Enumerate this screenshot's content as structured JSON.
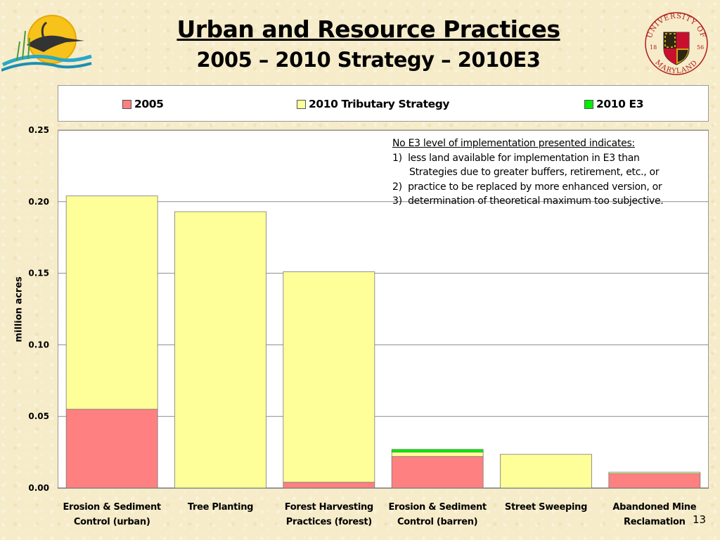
{
  "slide": {
    "title": "Urban and Resource Practices",
    "subtitle": "2005 – 2010 Strategy – 2010E3",
    "page_number": "13",
    "logos": [
      {
        "icon": "sun-heron-logo"
      },
      {
        "icon": "university-seal-logo",
        "text_top": "UNIVERSITY OF",
        "text_bottom": "MARYLAND",
        "year_left": "18",
        "year_right": "56"
      }
    ]
  },
  "annotation": {
    "heading": "No E3 level of implementation presented indicates:",
    "items": [
      {
        "number": "1)",
        "text": "less land available for implementation in E3 than"
      },
      {
        "number": "",
        "text": "Strategies due to greater buffers, retirement, etc., or"
      },
      {
        "number": "2)",
        "text": "practice to be replaced by more enhanced version, or"
      },
      {
        "number": "3)",
        "text": "determination of theoretical maximum too subjective."
      }
    ]
  },
  "chart_data": {
    "type": "bar",
    "stacked": true,
    "categories": [
      [
        "Erosion & Sediment",
        "Control (urban)"
      ],
      [
        "Tree Planting"
      ],
      [
        "Forest Harvesting",
        "Practices (forest)"
      ],
      [
        "Erosion & Sediment",
        "Control (barren)"
      ],
      [
        "Street Sweeping"
      ],
      [
        "Abandoned Mine",
        "Reclamation"
      ]
    ],
    "series": [
      {
        "name": "2005",
        "color": "#ff8080",
        "values": [
          0.055,
          0.0,
          0.004,
          0.022,
          0.0,
          0.01
        ]
      },
      {
        "name": "2010 Tributary Strategy",
        "color": "#ffff99",
        "values": [
          0.149,
          0.193,
          0.147,
          0.003,
          0.0235,
          0.001
        ]
      },
      {
        "name": "2010 E3",
        "color": "#00ee00",
        "values": [
          0.0,
          0.0,
          0.0,
          0.002,
          0.0,
          0.0
        ]
      }
    ],
    "ylabel": "million acres",
    "ylim": [
      0,
      0.25
    ],
    "yticks": [
      "0.00",
      "0.05",
      "0.10",
      "0.15",
      "0.20",
      "0.25"
    ],
    "grid": true,
    "legend_position": "top"
  }
}
